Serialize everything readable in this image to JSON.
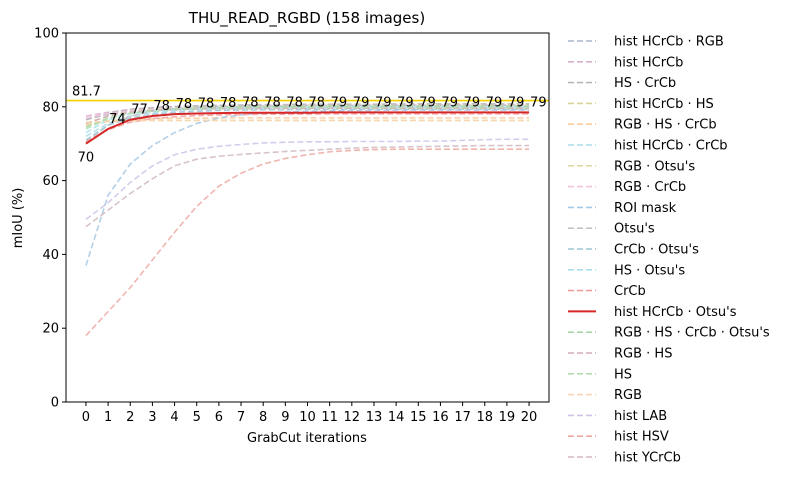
{
  "chart_data": {
    "type": "line",
    "title": "THU_READ_RGBD (158 images)",
    "xlabel": "GrabCut iterations",
    "ylabel": "mIoU (%)",
    "xlim": [
      -0.9,
      20.9
    ],
    "ylim": [
      0,
      100
    ],
    "xticks": [
      0,
      1,
      2,
      3,
      4,
      5,
      6,
      7,
      8,
      9,
      10,
      11,
      12,
      13,
      14,
      15,
      16,
      17,
      18,
      19,
      20
    ],
    "yticks": [
      0,
      20,
      40,
      60,
      80,
      100
    ],
    "x": [
      0,
      1,
      2,
      3,
      4,
      5,
      6,
      7,
      8,
      9,
      10,
      11,
      12,
      13,
      14,
      15,
      16,
      17,
      18,
      19,
      20
    ],
    "legend_position": "outside-right",
    "grid": false,
    "reference_line": {
      "value": 81.7,
      "label": "81.7",
      "color": "#f5d000"
    },
    "highlight_series": "hist HCrCb · Otsu's",
    "point_labels": {
      "x": [
        0,
        1,
        2,
        3,
        4,
        5,
        6,
        7,
        8,
        9,
        10,
        11,
        12,
        13,
        14,
        15,
        16,
        17,
        18,
        19,
        20
      ],
      "labels": [
        "70",
        "74",
        "77",
        "78",
        "78",
        "78",
        "78",
        "78",
        "78",
        "78",
        "78",
        "79",
        "79",
        "79",
        "79",
        "79",
        "79",
        "79",
        "79",
        "79",
        "79"
      ]
    },
    "series": [
      {
        "name": "hist HCrCb · RGB",
        "color": "#aab8cc",
        "dashed": true,
        "values": [
          76.5,
          78.0,
          78.8,
          79.1,
          79.3,
          79.4,
          79.5,
          79.5,
          79.6,
          79.6,
          79.6,
          79.6,
          79.7,
          79.7,
          79.7,
          79.7,
          79.7,
          79.7,
          79.7,
          79.7,
          79.7
        ]
      },
      {
        "name": "hist HCrCb",
        "color": "#d9b0cf",
        "dashed": true,
        "values": [
          77.5,
          78.5,
          79.3,
          79.7,
          80.0,
          80.1,
          80.2,
          80.3,
          80.3,
          80.4,
          80.4,
          80.4,
          80.4,
          80.5,
          80.5,
          80.5,
          80.5,
          80.5,
          80.5,
          80.5,
          80.5
        ]
      },
      {
        "name": "HS · CrCb",
        "color": "#b8b8b8",
        "dashed": true,
        "values": [
          76.5,
          78.3,
          79.3,
          79.8,
          80.1,
          80.3,
          80.4,
          80.5,
          80.6,
          80.6,
          80.7,
          80.7,
          80.7,
          80.7,
          80.8,
          80.8,
          80.8,
          80.8,
          80.8,
          80.8,
          80.8
        ]
      },
      {
        "name": "hist HCrCb · HS",
        "color": "#d8d49a",
        "dashed": true,
        "values": [
          75.5,
          77.5,
          78.7,
          79.3,
          79.6,
          79.8,
          79.9,
          80.0,
          80.1,
          80.1,
          80.2,
          80.2,
          80.2,
          80.2,
          80.2,
          80.3,
          80.3,
          80.3,
          80.3,
          80.3,
          80.3
        ]
      },
      {
        "name": "RGB · HS · CrCb",
        "color": "#f7c99b",
        "dashed": true,
        "values": [
          75.0,
          76.2,
          76.6,
          76.8,
          76.9,
          76.9,
          77.0,
          77.0,
          77.0,
          77.0,
          77.0,
          77.0,
          77.0,
          77.0,
          77.0,
          77.0,
          77.0,
          77.0,
          77.0,
          77.0,
          77.0
        ]
      },
      {
        "name": "hist HCrCb · CrCb",
        "color": "#a9dcea",
        "dashed": true,
        "values": [
          72.0,
          75.5,
          77.5,
          78.5,
          79.0,
          79.3,
          79.5,
          79.6,
          79.7,
          79.8,
          79.8,
          79.9,
          79.9,
          79.9,
          79.9,
          79.9,
          79.9,
          79.9,
          79.9,
          79.9,
          79.9
        ]
      },
      {
        "name": "RGB · Otsu's",
        "color": "#dbdba4",
        "dashed": true,
        "values": [
          75.5,
          76.0,
          76.2,
          76.3,
          76.3,
          76.3,
          76.3,
          76.3,
          76.3,
          76.3,
          76.3,
          76.3,
          76.3,
          76.3,
          76.3,
          76.3,
          76.3,
          76.3,
          76.3,
          76.3,
          76.3
        ]
      },
      {
        "name": "RGB · CrCb",
        "color": "#f3c3db",
        "dashed": true,
        "values": [
          77.0,
          78.2,
          78.9,
          79.2,
          79.4,
          79.5,
          79.6,
          79.6,
          79.7,
          79.7,
          79.7,
          79.7,
          79.7,
          79.7,
          79.7,
          79.7,
          79.7,
          79.7,
          79.7,
          79.7,
          79.7
        ]
      },
      {
        "name": "ROI mask",
        "color": "#a4c8e4",
        "dashed": true,
        "values": [
          37.0,
          56.0,
          64.5,
          69.5,
          73.0,
          75.5,
          77.0,
          77.8,
          78.3,
          78.6,
          78.8,
          78.9,
          79.0,
          79.0,
          79.1,
          79.1,
          79.1,
          79.1,
          79.1,
          79.1,
          79.1
        ]
      },
      {
        "name": "Otsu's",
        "color": "#c3c3c3",
        "dashed": true,
        "values": [
          70.5,
          75.0,
          77.5,
          78.8,
          79.5,
          79.9,
          80.1,
          80.2,
          80.3,
          80.3,
          80.4,
          80.4,
          80.4,
          80.4,
          80.4,
          80.4,
          80.4,
          80.4,
          80.4,
          80.4,
          80.4
        ]
      },
      {
        "name": "CrCb · Otsu's",
        "color": "#9ec5d6",
        "dashed": true,
        "values": [
          71.0,
          75.0,
          77.0,
          78.0,
          78.5,
          78.8,
          79.0,
          79.1,
          79.2,
          79.2,
          79.3,
          79.3,
          79.3,
          79.3,
          79.3,
          79.3,
          79.3,
          79.3,
          79.3,
          79.3,
          79.3
        ]
      },
      {
        "name": "HS · Otsu's",
        "color": "#a8e1ef",
        "dashed": true,
        "values": [
          73.0,
          76.5,
          78.2,
          79.0,
          79.4,
          79.6,
          79.7,
          79.8,
          79.8,
          79.9,
          79.9,
          79.9,
          79.9,
          79.9,
          79.9,
          79.9,
          79.9,
          79.9,
          79.9,
          79.9,
          79.9
        ]
      },
      {
        "name": "CrCb",
        "color": "#f2a09a",
        "dashed": true,
        "values": [
          70.5,
          73.8,
          75.8,
          76.8,
          77.3,
          77.6,
          77.8,
          77.9,
          78.0,
          78.0,
          78.0,
          78.1,
          78.1,
          78.1,
          78.1,
          78.1,
          78.1,
          78.1,
          78.1,
          78.1,
          78.1
        ]
      },
      {
        "name": "hist HCrCb · Otsu's",
        "color": "#d62728",
        "dashed": false,
        "values": [
          70.0,
          74.0,
          76.5,
          77.5,
          78.0,
          78.2,
          78.3,
          78.4,
          78.4,
          78.4,
          78.4,
          78.5,
          78.5,
          78.5,
          78.5,
          78.5,
          78.5,
          78.5,
          78.5,
          78.5,
          78.5
        ]
      },
      {
        "name": "RGB · HS · CrCb · Otsu's",
        "color": "#a8d6a8",
        "dashed": true,
        "values": [
          74.5,
          77.0,
          78.3,
          79.0,
          79.4,
          79.6,
          79.8,
          79.9,
          80.0,
          80.0,
          80.0,
          80.1,
          80.1,
          80.1,
          80.1,
          80.1,
          80.1,
          80.1,
          80.1,
          80.1,
          80.1
        ]
      },
      {
        "name": "RGB · HS",
        "color": "#d4aeb8",
        "dashed": true,
        "values": [
          75.5,
          77.5,
          78.5,
          79.0,
          79.2,
          79.4,
          79.5,
          79.5,
          79.6,
          79.6,
          79.6,
          79.6,
          79.6,
          79.6,
          79.6,
          79.6,
          79.6,
          79.6,
          79.6,
          79.6,
          79.6
        ]
      },
      {
        "name": "HS",
        "color": "#b4dcb0",
        "dashed": true,
        "values": [
          74.0,
          76.8,
          78.2,
          78.9,
          79.3,
          79.5,
          79.6,
          79.7,
          79.8,
          79.8,
          79.8,
          79.8,
          79.8,
          79.8,
          79.8,
          79.8,
          79.8,
          79.8,
          79.8,
          79.8,
          79.8
        ]
      },
      {
        "name": "RGB",
        "color": "#f9d6b0",
        "dashed": true,
        "values": [
          75.8,
          76.0,
          76.2,
          76.3,
          76.3,
          76.3,
          76.3,
          76.3,
          76.3,
          76.3,
          76.3,
          76.3,
          76.3,
          76.3,
          76.3,
          76.3,
          76.3,
          76.3,
          76.3,
          76.3,
          76.3
        ]
      },
      {
        "name": "hist LAB",
        "color": "#cfc2e6",
        "dashed": true,
        "values": [
          49.5,
          54.0,
          59.5,
          64.0,
          67.0,
          68.5,
          69.3,
          69.8,
          70.2,
          70.4,
          70.5,
          70.5,
          70.6,
          70.6,
          70.6,
          70.7,
          70.7,
          70.9,
          71.1,
          71.2,
          71.2
        ]
      },
      {
        "name": "hist HSV",
        "color": "#eea8a2",
        "dashed": true,
        "values": [
          18.0,
          24.5,
          31.0,
          38.5,
          46.0,
          53.0,
          58.5,
          62.0,
          64.5,
          66.0,
          67.0,
          67.8,
          68.2,
          68.4,
          68.5,
          68.5,
          68.5,
          68.5,
          68.5,
          68.5,
          68.5
        ]
      },
      {
        "name": "hist YCrCb",
        "color": "#d1b8bd",
        "dashed": true,
        "values": [
          47.5,
          52.0,
          56.5,
          60.5,
          64.0,
          65.8,
          66.6,
          67.1,
          67.5,
          67.9,
          68.2,
          68.5,
          68.8,
          69.0,
          69.1,
          69.2,
          69.3,
          69.4,
          69.5,
          69.5,
          69.5
        ]
      }
    ]
  }
}
